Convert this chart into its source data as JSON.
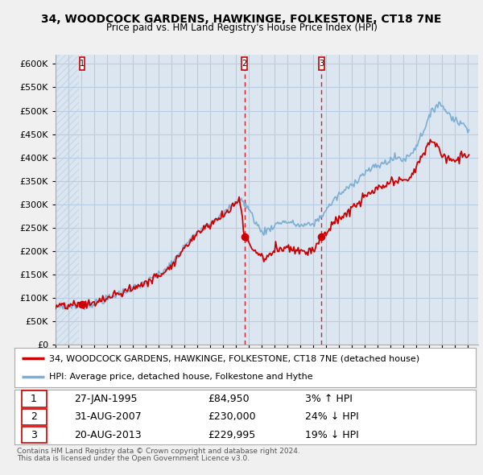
{
  "title": "34, WOODCOCK GARDENS, HAWKINGE, FOLKESTONE, CT18 7NE",
  "subtitle": "Price paid vs. HM Land Registry's House Price Index (HPI)",
  "legend_property": "34, WOODCOCK GARDENS, HAWKINGE, FOLKESTONE, CT18 7NE (detached house)",
  "legend_hpi": "HPI: Average price, detached house, Folkestone and Hythe",
  "footer1": "Contains HM Land Registry data © Crown copyright and database right 2024.",
  "footer2": "This data is licensed under the Open Government Licence v3.0.",
  "sales": [
    {
      "num": 1,
      "date_x": 1995.07,
      "price": 84950,
      "label": "27-JAN-1995",
      "amount": "£84,950",
      "hpi_rel": "3% ↑ HPI",
      "vline": false
    },
    {
      "num": 2,
      "date_x": 2007.66,
      "price": 230000,
      "label": "31-AUG-2007",
      "amount": "£230,000",
      "hpi_rel": "24% ↓ HPI",
      "vline": true
    },
    {
      "num": 3,
      "date_x": 2013.64,
      "price": 229995,
      "label": "20-AUG-2013",
      "amount": "£229,995",
      "hpi_rel": "19% ↓ HPI",
      "vline": true
    }
  ],
  "ylim": [
    0,
    620000
  ],
  "yticks": [
    0,
    50000,
    100000,
    150000,
    200000,
    250000,
    300000,
    350000,
    400000,
    450000,
    500000,
    550000,
    600000
  ],
  "ytick_labels": [
    "£0",
    "£50K",
    "£100K",
    "£150K",
    "£200K",
    "£250K",
    "£300K",
    "£350K",
    "£400K",
    "£450K",
    "£500K",
    "£550K",
    "£600K"
  ],
  "xlim_start": 1993.0,
  "xlim_end": 2025.8,
  "property_color": "#cc0000",
  "hpi_color": "#7bafd4",
  "background_color": "#f0f0f0",
  "plot_bg_color": "#dce6f0",
  "grid_color": "#b8cce4",
  "vline_color": "#cc0000",
  "marker_color": "#cc0000",
  "hatch_color": "#c8d8e8"
}
